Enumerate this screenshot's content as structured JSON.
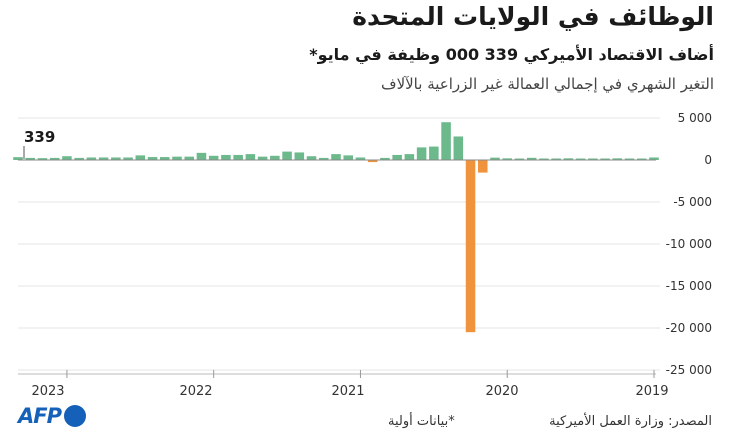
{
  "chart_data": {
    "type": "bar",
    "title": "الوظائف في الولايات المتحدة",
    "subtitle": "أضاف الاقتصاد الأميركي 339 000 وظيفة في مايو*",
    "description": "التغير الشهري في إجمالي العمالة غير الزراعية بالآلاف",
    "annotation": "339",
    "x_start_label": "2019",
    "x_end_label": "2023",
    "x_ticks": [
      "2019",
      "2020",
      "2021",
      "2022",
      "2023"
    ],
    "y_ticks": [
      "5 000",
      "0",
      "-5 000",
      "-10 000",
      "-15 000",
      "-20 000",
      "-25 000"
    ],
    "y_tick_values": [
      5000,
      0,
      -5000,
      -10000,
      -15000,
      -20000,
      -25000
    ],
    "ylim": [
      -25000,
      5000
    ],
    "x_direction": "right-to-left (oldest at right)",
    "months_chronological": [
      "2019-01",
      "2019-02",
      "2019-03",
      "2019-04",
      "2019-05",
      "2019-06",
      "2019-07",
      "2019-08",
      "2019-09",
      "2019-10",
      "2019-11",
      "2019-12",
      "2020-01",
      "2020-02",
      "2020-03",
      "2020-04",
      "2020-05",
      "2020-06",
      "2020-07",
      "2020-08",
      "2020-09",
      "2020-10",
      "2020-11",
      "2020-12",
      "2021-01",
      "2021-02",
      "2021-03",
      "2021-04",
      "2021-05",
      "2021-06",
      "2021-07",
      "2021-08",
      "2021-09",
      "2021-10",
      "2021-11",
      "2021-12",
      "2022-01",
      "2022-02",
      "2022-03",
      "2022-04",
      "2022-05",
      "2022-06",
      "2022-07",
      "2022-08",
      "2022-09",
      "2022-10",
      "2022-11",
      "2022-12",
      "2023-01",
      "2023-02",
      "2023-03",
      "2023-04",
      "2023-05"
    ],
    "values_chronological": [
      300,
      50,
      150,
      200,
      80,
      180,
      170,
      200,
      180,
      150,
      260,
      150,
      200,
      280,
      -1500,
      -20500,
      2800,
      4500,
      1600,
      1500,
      700,
      600,
      250,
      -250,
      300,
      550,
      700,
      250,
      450,
      900,
      1000,
      500,
      400,
      700,
      600,
      600,
      500,
      850,
      400,
      400,
      350,
      350,
      550,
      300,
      300,
      300,
      300,
      250,
      450,
      250,
      220,
      250,
      339
    ],
    "colors": {
      "positive": "#6cb98c",
      "negative": "#f0933d",
      "axis": "#bbbbbb",
      "grid": "#e6e6e6"
    }
  },
  "footer": {
    "source": "المصدر: وزارة العمل الأميركية",
    "note": "*بيانات أولية",
    "logo_text": "AFP"
  }
}
